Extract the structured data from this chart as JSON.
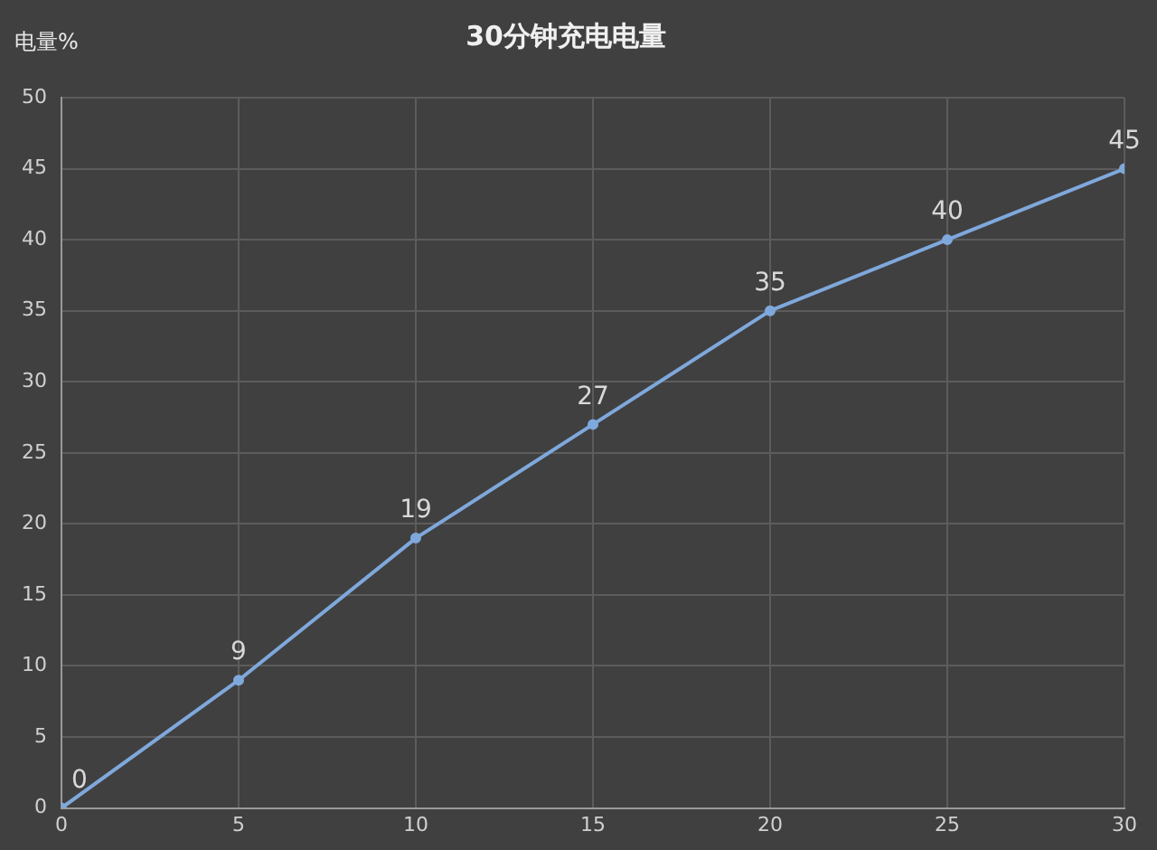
{
  "chart_data": {
    "type": "line",
    "title": "30分钟充电电量",
    "ylabel": "电量%",
    "x": [
      0,
      5,
      10,
      15,
      20,
      25,
      30
    ],
    "series": [
      {
        "color": "#7fa8dc",
        "values": [
          0,
          9,
          19,
          27,
          35,
          40,
          45
        ]
      }
    ],
    "xlim": [
      0,
      30
    ],
    "xticks": [
      0,
      5,
      10,
      15,
      20,
      25,
      30
    ],
    "ylim": [
      0,
      50
    ],
    "yticks": [
      0,
      5,
      10,
      15,
      20,
      25,
      30,
      35,
      40,
      45,
      50
    ],
    "grid": true,
    "legend": false,
    "marker": "circle",
    "line_style": "solid",
    "data_labels": true
  }
}
